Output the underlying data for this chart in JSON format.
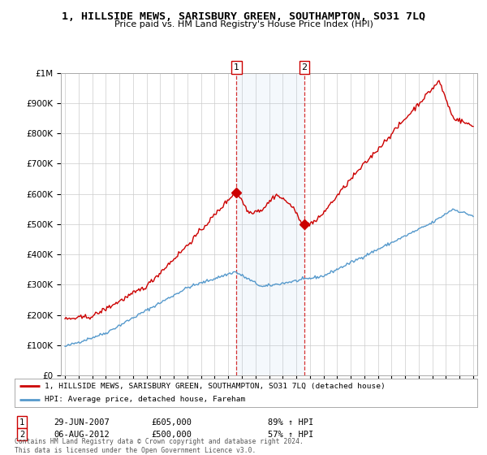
{
  "title": "1, HILLSIDE MEWS, SARISBURY GREEN, SOUTHAMPTON, SO31 7LQ",
  "subtitle": "Price paid vs. HM Land Registry's House Price Index (HPI)",
  "ylim": [
    0,
    1000000
  ],
  "yticks": [
    0,
    100000,
    200000,
    300000,
    400000,
    500000,
    600000,
    700000,
    800000,
    900000,
    1000000
  ],
  "ytick_labels": [
    "£0",
    "£100K",
    "£200K",
    "£300K",
    "£400K",
    "£500K",
    "£600K",
    "£700K",
    "£800K",
    "£900K",
    "£1M"
  ],
  "line1_color": "#cc0000",
  "line2_color": "#5599cc",
  "transaction1_date": 2007.6,
  "transaction1_price": 605000,
  "transaction2_date": 2012.6,
  "transaction2_price": 500000,
  "legend_line1": "1, HILLSIDE MEWS, SARISBURY GREEN, SOUTHAMPTON, SO31 7LQ (detached house)",
  "legend_line2": "HPI: Average price, detached house, Fareham",
  "annotation1_date": "29-JUN-2007",
  "annotation1_price": "£605,000",
  "annotation1_hpi": "89% ↑ HPI",
  "annotation2_date": "06-AUG-2012",
  "annotation2_price": "£500,000",
  "annotation2_hpi": "57% ↑ HPI",
  "footer": "Contains HM Land Registry data © Crown copyright and database right 2024.\nThis data is licensed under the Open Government Licence v3.0.",
  "bg_color": "#ffffff",
  "plot_bg_color": "#ffffff",
  "grid_color": "#cccccc",
  "highlight_color": "#ddeeff"
}
